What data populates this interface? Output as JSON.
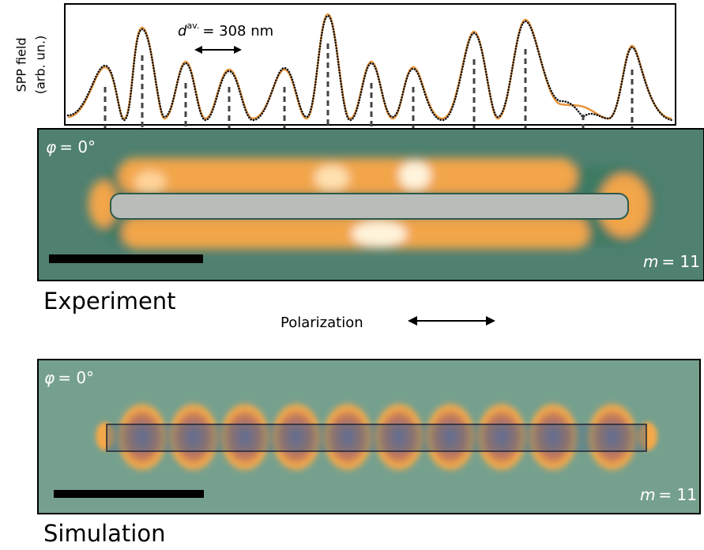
{
  "plot": {
    "y_label": [
      "SPP field",
      "(arb. un.)"
    ],
    "spacing": {
      "symbol": "d",
      "superscript": "av.",
      "text": "= 308 nm"
    }
  },
  "experiment": {
    "angle_symbol": "φ",
    "angle_text": "= 0°",
    "mode_symbol": "m",
    "mode_text": "= 11",
    "caption": "Experiment"
  },
  "polarization": "Polarization",
  "simulation": {
    "angle_symbol": "φ",
    "angle_text": "= 0°",
    "mode_symbol": "m",
    "mode_text": "= 11",
    "caption": "Simulation"
  }
}
